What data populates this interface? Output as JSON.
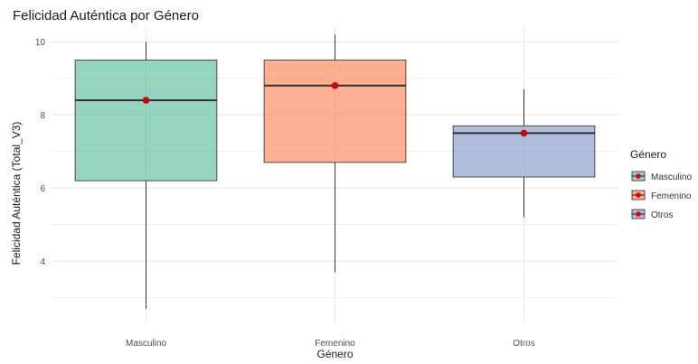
{
  "chart_data": {
    "type": "boxplot",
    "title": "Felicidad Auténtica por Género",
    "xlabel": "Género",
    "ylabel": "Felicidad Auténtica (Total_V3)",
    "ylim": [
      2.3,
      10.4
    ],
    "yticks": [
      4,
      6,
      8,
      10
    ],
    "grid": true,
    "legend": {
      "title": "Género",
      "placement": "right",
      "entries": [
        "Masculino",
        "Femenino",
        "Otros"
      ]
    },
    "categories": [
      "Masculino",
      "Femenino",
      "Otros"
    ],
    "series": [
      {
        "category": "Masculino",
        "min": 2.7,
        "q1": 6.2,
        "median": 8.4,
        "q3": 9.5,
        "max": 10.0,
        "mean": 8.4,
        "color": "#66c2a5"
      },
      {
        "category": "Femenino",
        "min": 3.7,
        "q1": 6.7,
        "median": 8.8,
        "q3": 9.5,
        "max": 10.2,
        "mean": 8.8,
        "color": "#fc8d62"
      },
      {
        "category": "Otros",
        "min": 5.2,
        "q1": 6.3,
        "median": 7.5,
        "q3": 7.7,
        "max": 8.7,
        "mean": 7.5,
        "color": "#8da0cb"
      }
    ],
    "mean_marker_color": "#e00000"
  }
}
